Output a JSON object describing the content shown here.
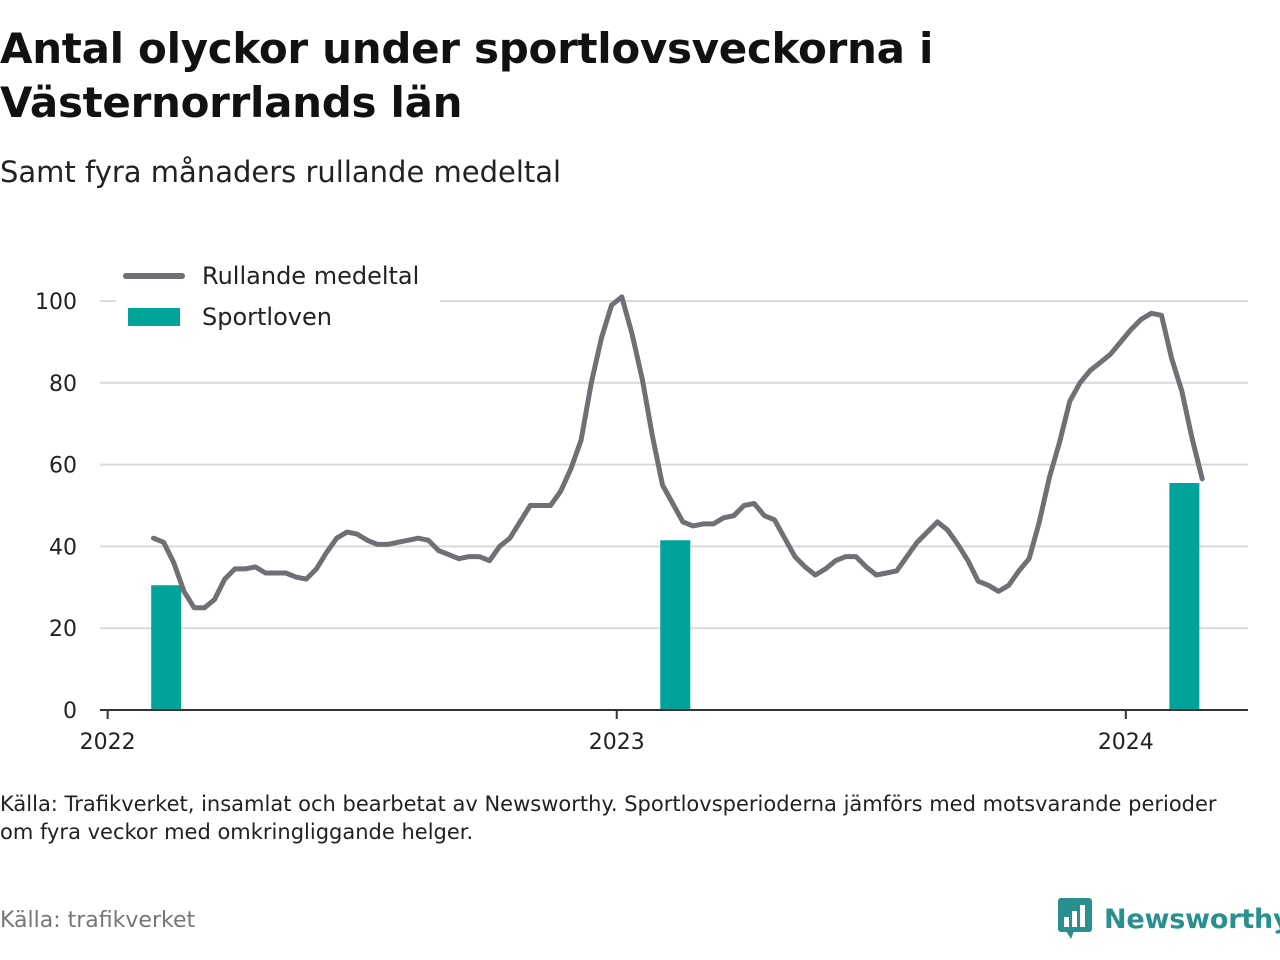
{
  "title": "Antal olyckor under sportlovsveckorna i Västernorrlands län",
  "subtitle": "Samt fyra månaders rullande medeltal",
  "note": "Källa: Trafikverket, insamlat och bearbetat av Newsworthy. Sportlovsperioderna jämförs med motsvarande perioder om fyra veckor med omkringliggande helger.",
  "source": "Källa: trafikverket",
  "brand": "Newsworthy",
  "colors": {
    "line": "#6f6f75",
    "bars": "#00a39a",
    "brand": "#2a8f8f"
  },
  "chart_data": {
    "type": "bar+line",
    "ylim": [
      0,
      100
    ],
    "yticks": [
      "0",
      "20",
      "40",
      "60",
      "80",
      "100"
    ],
    "xticks": [
      {
        "label": "2022",
        "t": 2022.0
      },
      {
        "label": "2023",
        "t": 2023.0
      },
      {
        "label": "2024",
        "t": 2024.0
      }
    ],
    "grid": true,
    "legend_position": "top-left",
    "series": [
      {
        "name": "Rullande medeltal",
        "type": "line",
        "points": [
          [
            2022.09,
            42
          ],
          [
            2022.11,
            41
          ],
          [
            2022.13,
            36
          ],
          [
            2022.15,
            29
          ],
          [
            2022.17,
            25
          ],
          [
            2022.19,
            25
          ],
          [
            2022.21,
            27
          ],
          [
            2022.23,
            32
          ],
          [
            2022.25,
            34.5
          ],
          [
            2022.27,
            34.5
          ],
          [
            2022.29,
            35
          ],
          [
            2022.31,
            33.5
          ],
          [
            2022.33,
            33.5
          ],
          [
            2022.35,
            33.5
          ],
          [
            2022.37,
            32.5
          ],
          [
            2022.39,
            32
          ],
          [
            2022.41,
            34.5
          ],
          [
            2022.43,
            38.5
          ],
          [
            2022.45,
            42
          ],
          [
            2022.47,
            43.5
          ],
          [
            2022.49,
            43
          ],
          [
            2022.51,
            41.5
          ],
          [
            2022.53,
            40.5
          ],
          [
            2022.55,
            40.5
          ],
          [
            2022.57,
            41
          ],
          [
            2022.59,
            41.5
          ],
          [
            2022.61,
            42
          ],
          [
            2022.63,
            41.5
          ],
          [
            2022.65,
            39
          ],
          [
            2022.67,
            38
          ],
          [
            2022.69,
            37
          ],
          [
            2022.71,
            37.5
          ],
          [
            2022.73,
            37.5
          ],
          [
            2022.75,
            36.5
          ],
          [
            2022.77,
            40
          ],
          [
            2022.79,
            42
          ],
          [
            2022.81,
            46
          ],
          [
            2022.83,
            50
          ],
          [
            2022.85,
            50
          ],
          [
            2022.87,
            50
          ],
          [
            2022.89,
            53.5
          ],
          [
            2022.91,
            59
          ],
          [
            2022.93,
            66
          ],
          [
            2022.95,
            80
          ],
          [
            2022.97,
            91
          ],
          [
            2022.99,
            99
          ],
          [
            2023.01,
            101
          ],
          [
            2023.03,
            92
          ],
          [
            2023.05,
            81
          ],
          [
            2023.07,
            67
          ],
          [
            2023.09,
            55
          ],
          [
            2023.11,
            50.5
          ],
          [
            2023.13,
            46
          ],
          [
            2023.15,
            45
          ],
          [
            2023.17,
            45.5
          ],
          [
            2023.19,
            45.5
          ],
          [
            2023.21,
            47
          ],
          [
            2023.23,
            47.5
          ],
          [
            2023.25,
            50
          ],
          [
            2023.27,
            50.5
          ],
          [
            2023.29,
            47.5
          ],
          [
            2023.31,
            46.5
          ],
          [
            2023.33,
            42
          ],
          [
            2023.35,
            37.5
          ],
          [
            2023.37,
            35
          ],
          [
            2023.39,
            33
          ],
          [
            2023.41,
            34.5
          ],
          [
            2023.43,
            36.5
          ],
          [
            2023.45,
            37.5
          ],
          [
            2023.47,
            37.5
          ],
          [
            2023.49,
            35
          ],
          [
            2023.51,
            33
          ],
          [
            2023.53,
            33.5
          ],
          [
            2023.55,
            34
          ],
          [
            2023.57,
            37.5
          ],
          [
            2023.59,
            41
          ],
          [
            2023.61,
            43.5
          ],
          [
            2023.63,
            46
          ],
          [
            2023.65,
            44
          ],
          [
            2023.67,
            40.5
          ],
          [
            2023.69,
            36.5
          ],
          [
            2023.71,
            31.5
          ],
          [
            2023.73,
            30.5
          ],
          [
            2023.75,
            29
          ],
          [
            2023.77,
            30.5
          ],
          [
            2023.79,
            34
          ],
          [
            2023.81,
            37
          ],
          [
            2023.83,
            46
          ],
          [
            2023.85,
            57
          ],
          [
            2023.87,
            65.5
          ],
          [
            2023.89,
            75.5
          ],
          [
            2023.91,
            80
          ],
          [
            2023.93,
            83
          ],
          [
            2023.95,
            85
          ],
          [
            2023.97,
            87
          ],
          [
            2023.99,
            90
          ],
          [
            2024.01,
            93
          ],
          [
            2024.03,
            95.5
          ],
          [
            2024.05,
            97
          ],
          [
            2024.07,
            96.5
          ],
          [
            2024.09,
            86
          ],
          [
            2024.11,
            78
          ],
          [
            2024.13,
            66.5
          ],
          [
            2024.15,
            56.5
          ]
        ]
      },
      {
        "name": "Sportloven",
        "type": "bar",
        "points": [
          [
            2022.115,
            30.5
          ],
          [
            2023.115,
            41.5
          ],
          [
            2024.115,
            55.5
          ]
        ]
      }
    ]
  }
}
